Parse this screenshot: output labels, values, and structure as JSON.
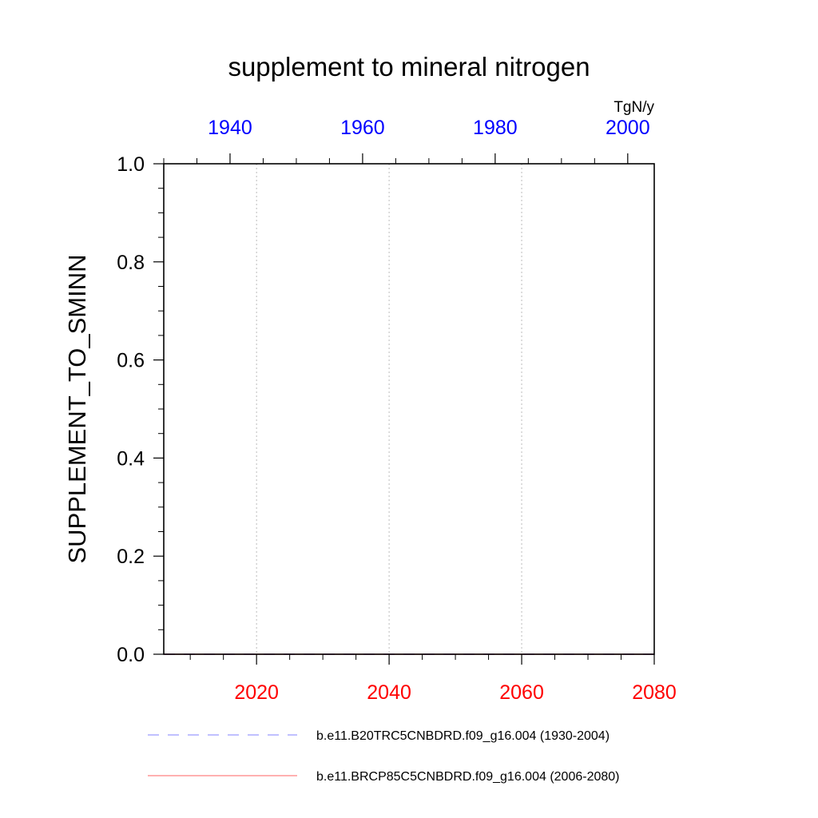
{
  "chart_data": {
    "type": "line",
    "title": "supplement to mineral nitrogen",
    "units": "TgN/y",
    "ylabel": "SUPPLEMENT_TO_SMINN",
    "ylim": [
      0.0,
      1.0
    ],
    "yticks": [
      "0.0",
      "0.2",
      "0.4",
      "0.6",
      "0.8",
      "1.0"
    ],
    "bottom_axis": {
      "xlim": [
        2006,
        2080
      ],
      "ticks": [
        2020,
        2040,
        2060,
        2080
      ],
      "tick_labels": [
        "2020",
        "2040",
        "2060",
        "2080"
      ],
      "color": "#ff0000"
    },
    "top_axis": {
      "xlim": [
        1930,
        2004
      ],
      "ticks": [
        1940,
        1960,
        1980,
        2000
      ],
      "tick_labels": [
        "1940",
        "1960",
        "1980",
        "2000"
      ],
      "color": "#0000ff"
    },
    "grid": "vertical dotted at bottom-axis major ticks",
    "series": [
      {
        "name": "b.e11.B20TRC5CNBDRD.f09_g16.004 (1930-2004)",
        "axis": "top",
        "color": "#0000ff",
        "style": "dashed",
        "x": [
          1930,
          2004
        ],
        "values": [
          0.0,
          0.0
        ]
      },
      {
        "name": "b.e11.BRCP85C5CNBDRD.f09_g16.004 (2006-2080)",
        "axis": "bottom",
        "color": "#ff0000",
        "style": "solid",
        "x": [
          2006,
          2080
        ],
        "values": [
          0.0,
          0.0
        ]
      }
    ],
    "legend_position": "bottom"
  }
}
